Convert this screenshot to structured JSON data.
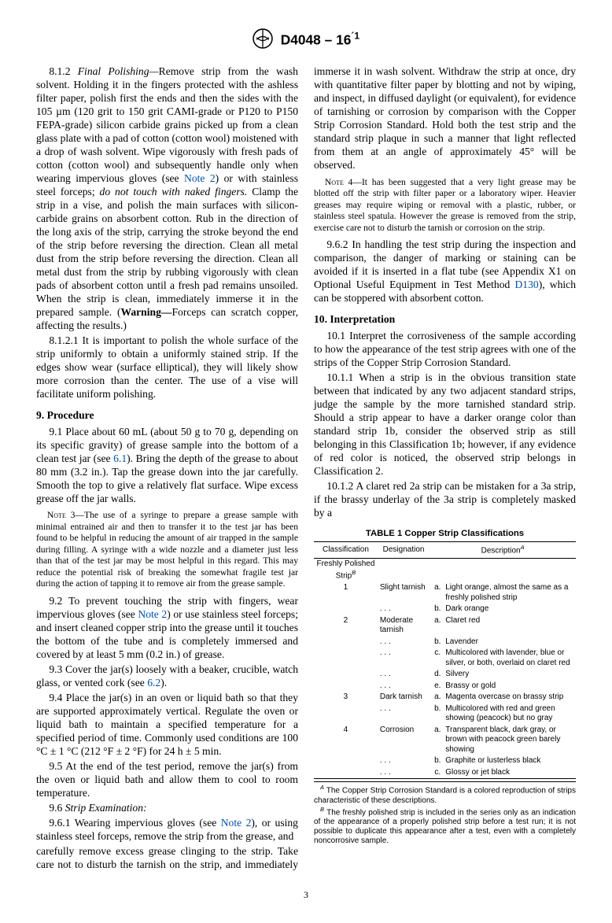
{
  "header": {
    "doc_id": "D4048 – 16",
    "sup": "´1"
  },
  "page_number": "3",
  "col1": {
    "p812_num": "8.1.2 ",
    "p812_title": "Final Polishing—",
    "p812_body": "Remove strip from the wash solvent. Holding it in the fingers protected with the ashless filter paper, polish first the ends and then the sides with the 105 µm (120 grit to 150 grit CAMI-grade or P120 to P150 FEPA-grade) silicon carbide grains picked up from a clean glass plate with a pad of cotton (cotton wool) moistened with a drop of wash solvent. Wipe vigorously with fresh pads of cotton (cotton wool) and subsequently handle only when wearing impervious gloves (see ",
    "p812_note2": "Note 2",
    "p812_body2": ") or with stainless steel forceps; ",
    "p812_ital": "do not touch with naked fingers.",
    "p812_body3": " Clamp the strip in a vise, and polish the main surfaces with silicon-carbide grains on absorbent cotton. Rub in the direction of the long axis of the strip, carrying the stroke beyond the end of the strip before reversing the direction. Clean all metal dust from the strip before reversing the direction. Clean all metal dust from the strip by rubbing vigorously with clean pads of absorbent cotton until a fresh pad remains unsoiled. When the strip is clean, immediately immerse it in the prepared sample. (",
    "p812_warn": "Warning—",
    "p812_body4": "Forceps can scratch copper, affecting the results.)",
    "p8121": "8.1.2.1 It is important to polish the whole surface of the strip uniformly to obtain a uniformly stained strip. If the edges show wear (surface elliptical), they will likely show more corrosion than the center. The use of a vise will facilitate uniform polishing.",
    "h9": "9. Procedure",
    "p91a": "9.1 Place about 60 mL (about 50 g to 70 g, depending on its specific gravity) of grease sample into the bottom of a clean test jar (see ",
    "p91_61": "6.1",
    "p91b": "). Bring the depth of the grease to about 80 mm (3.2 in.). Tap the grease down into the jar carefully. Smooth the top to give a relatively flat surface. Wipe excess grease off the jar walls.",
    "note3_label": "Note",
    "note3_num": " 3—",
    "note3": "The use of a syringe to prepare a grease sample with minimal entrained air and then to transfer it to the test jar has been found to be helpful in reducing the amount of air trapped in the sample during filling. A syringe with a wide nozzle and a diameter just less than that of the test jar may be most helpful in this regard. This may reduce the potential risk of breaking the somewhat fragile test jar during the action of tapping it to remove air from the grease sample.",
    "p92a": "9.2 To prevent touching the strip with fingers, wear impervious gloves (see ",
    "p92_note2": "Note 2",
    "p92b": ") or use stainless steel forceps; and insert cleaned copper strip into the grease until it touches the bottom of the tube and is completely immersed and covered by at least 5 mm (0.2 in.) of grease.",
    "p93a": "9.3 Cover the jar(s) loosely with a beaker, crucible, watch glass, or vented cork (see ",
    "p93_62": "6.2",
    "p93b": ").",
    "p94": "9.4 Place the jar(s) in an oven or liquid bath so that they are supported approximately vertical. Regulate the oven or liquid bath to maintain a specified temperature for a specified period of time. Commonly used conditions are 100 °C ± 1 °C (212 °F ± 2 °F) for 24 h ± 5 min.",
    "p95": "9.5 At the end of the test period, remove the jar(s) from the oven or liquid bath and allow them to cool to room temperature.",
    "p96_num": "9.6 ",
    "p96_title": "Strip Examination:",
    "p961a": "9.6.1 Wearing impervious gloves (see ",
    "p961_note2": "Note 2",
    "p961b": "), or using stainless steel forceps, remove the strip from the grease, and"
  },
  "col2": {
    "p961c": "carefully remove excess grease clinging to the strip. Take care not to disturb the tarnish on the strip, and immediately immerse it in wash solvent. Withdraw the strip at once, dry with quantitative filter paper by blotting and not by wiping, and inspect, in diffused daylight (or equivalent), for evidence of tarnishing or corrosion by comparison with the Copper Strip Corrosion Standard. Hold both the test strip and the standard strip plaque in such a manner that light reflected from them at an angle of approximately 45° will be observed.",
    "note4_label": "Note",
    "note4_num": " 4—",
    "note4": "It has been suggested that a very light grease may be blotted off the strip with filter paper or a laboratory wiper. Heavier greases may require wiping or removal with a plastic, rubber, or stainless steel spatula. However the grease is removed from the strip, exercise care not to disturb the tarnish or corrosion on the strip.",
    "p962a": "9.6.2 In handling the test strip during the inspection and comparison, the danger of marking or staining can be avoided if it is inserted in a flat tube (see Appendix X1 on Optional Useful Equipment in Test Method ",
    "p962_d130": "D130",
    "p962b": "), which can be stoppered with absorbent cotton.",
    "h10": "10. Interpretation",
    "p101": "10.1 Interpret the corrosiveness of the sample according to how the appearance of the test strip agrees with one of the strips of the Copper Strip Corrosion Standard.",
    "p1011": "10.1.1 When a strip is in the obvious transition state between that indicated by any two adjacent standard strips, judge the sample by the more tarnished standard strip. Should a strip appear to have a darker orange color than standard strip 1b, consider the observed strip as still belonging in this Classification 1b; however, if any evidence of red color is noticed, the observed strip belongs in Classification 2.",
    "p1012": "10.1.2 A claret red 2a strip can be mistaken for a 3a strip, if the brassy underlay of the 3a strip is completely masked by a"
  },
  "table": {
    "title": "TABLE 1 Copper Strip Classifications",
    "head_c1": "Classification",
    "head_c2": "Designation",
    "head_c3": "Description",
    "fpA": "A",
    "fpB": "B",
    "rows": [
      {
        "c": "Freshly Polished Strip",
        "d": "",
        "l": "",
        "desc": "",
        "fn": "B"
      },
      {
        "c": "1",
        "d": "Slight tarnish",
        "l": "a.",
        "desc": "Light orange, almost the same as a freshly polished strip"
      },
      {
        "c": "",
        "d": ". . .",
        "l": "b.",
        "desc": "Dark orange"
      },
      {
        "c": "2",
        "d": "Moderate tarnish",
        "l": "a.",
        "desc": "Claret red"
      },
      {
        "c": "",
        "d": ". . .",
        "l": "b.",
        "desc": "Lavender"
      },
      {
        "c": "",
        "d": ". . .",
        "l": "c.",
        "desc": "Multicolored with lavender, blue or silver, or both, overlaid on claret red"
      },
      {
        "c": "",
        "d": ". . .",
        "l": "d.",
        "desc": "Silvery"
      },
      {
        "c": "",
        "d": ". . .",
        "l": "e.",
        "desc": "Brassy or gold"
      },
      {
        "c": "3",
        "d": "Dark tarnish",
        "l": "a.",
        "desc": "Magenta overcase on brassy strip"
      },
      {
        "c": "",
        "d": ". . .",
        "l": "b.",
        "desc": "Multicolored with red and green showing (peacock) but no gray"
      },
      {
        "c": "4",
        "d": "Corrosion",
        "l": "a.",
        "desc": "Transparent black, dark gray, or brown with peacock green barely showing"
      },
      {
        "c": "",
        "d": ". . .",
        "l": "b.",
        "desc": "Graphite or lusterless black"
      },
      {
        "c": "",
        "d": ". . .",
        "l": "c.",
        "desc": "Glossy or jet black"
      }
    ],
    "fnA": " The Copper Strip Corrosion Standard is a colored reproduction of strips characteristic of these descriptions.",
    "fnB": " The freshly polished strip is included in the series only as an indication of the appearance of a properly polished strip before a test run; it is not possible to duplicate this appearance after a test, even with a completely noncorrosive sample."
  }
}
